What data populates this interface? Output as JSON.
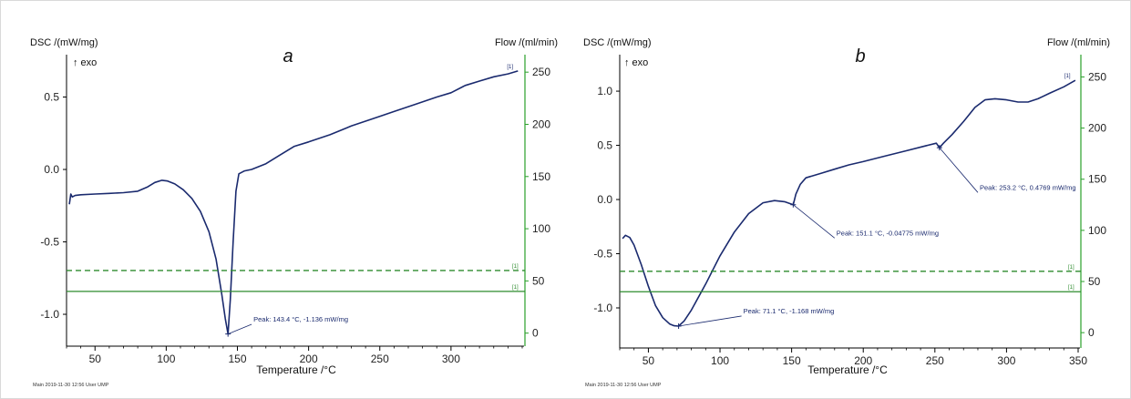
{
  "colors": {
    "curve": "#1a2a6e",
    "flow_axis": "#2aa02a",
    "flow_line": "#2e8b2e",
    "axis": "#000000",
    "annotation": "#1a2a6e",
    "marker": "#1a2a6e"
  },
  "chart_data": [
    {
      "panel_letter": "a",
      "type": "line",
      "ylabel": "DSC /(mW/mg)",
      "exo_label": "↑ exo",
      "y2label": "Flow /(ml/min)",
      "xlabel": "Temperature /°C",
      "footer": "Main   2019-11-30 12:56   User UMP",
      "xlim": [
        30,
        350
      ],
      "ylim": [
        -1.22,
        0.78
      ],
      "y2lim": [
        -12.5,
        265
      ],
      "xticks": [
        50,
        100,
        150,
        200,
        250,
        300
      ],
      "yticks": [
        0.5,
        0.0,
        -0.5,
        -1.0
      ],
      "y2ticks": [
        0,
        50,
        100,
        150,
        200,
        250
      ],
      "series": [
        {
          "role": "dsc",
          "x": [
            32,
            33,
            34,
            36,
            40,
            50,
            60,
            70,
            80,
            87,
            92,
            97,
            101,
            106,
            112,
            118,
            124,
            130,
            135,
            139,
            141.5,
            143.4,
            145,
            147,
            149,
            151,
            155,
            160,
            170,
            180,
            190,
            200,
            215,
            230,
            245,
            260,
            275,
            290,
            300,
            310,
            320,
            330,
            340,
            347
          ],
          "y": [
            -0.24,
            -0.17,
            -0.19,
            -0.18,
            -0.175,
            -0.17,
            -0.165,
            -0.16,
            -0.15,
            -0.12,
            -0.09,
            -0.075,
            -0.08,
            -0.1,
            -0.14,
            -0.2,
            -0.29,
            -0.43,
            -0.62,
            -0.86,
            -1.03,
            -1.136,
            -0.9,
            -0.5,
            -0.15,
            -0.03,
            -0.01,
            0.0,
            0.04,
            0.1,
            0.16,
            0.19,
            0.24,
            0.3,
            0.35,
            0.4,
            0.45,
            0.5,
            0.53,
            0.58,
            0.61,
            0.64,
            0.66,
            0.68
          ]
        },
        {
          "role": "flow-dashed",
          "x": [
            30,
            350
          ],
          "y2": [
            60,
            60
          ],
          "end_label": "[1]"
        },
        {
          "role": "flow-solid",
          "x": [
            30,
            350
          ],
          "y2": [
            40,
            40
          ],
          "end_label": "[1]"
        }
      ],
      "curve_end_label": "[1]",
      "annotations": [
        {
          "text": "Peak: 143.4 °C, -1.136 mW/mg",
          "point": [
            143.4,
            -1.136
          ],
          "label_anchor": [
            160,
            -1.05
          ]
        }
      ]
    },
    {
      "panel_letter": "b",
      "type": "line",
      "ylabel": "DSC /(mW/mg)",
      "exo_label": "↑ exo",
      "y2label": "Flow /(ml/min)",
      "xlabel": "Temperature /°C",
      "footer": "Main   2019-11-30 12:56   User UMP",
      "xlim": [
        30,
        350
      ],
      "ylim": [
        -1.37,
        1.32
      ],
      "y2lim": [
        -15,
        270
      ],
      "xticks": [
        50,
        100,
        150,
        200,
        250,
        300,
        350
      ],
      "yticks": [
        1.0,
        0.5,
        0.0,
        -0.5,
        -1.0
      ],
      "y2ticks": [
        0,
        50,
        100,
        150,
        200,
        250
      ],
      "series": [
        {
          "role": "dsc",
          "x": [
            32,
            34,
            37,
            40,
            45,
            50,
            55,
            60,
            65,
            68,
            71.1,
            75,
            80,
            90,
            100,
            110,
            120,
            130,
            138,
            145,
            151.1,
            153,
            156,
            160,
            170,
            180,
            190,
            200,
            215,
            230,
            245,
            251,
            253.2,
            256,
            262,
            270,
            278,
            285,
            292,
            300,
            308,
            315,
            322,
            330,
            340,
            348
          ],
          "y": [
            -0.36,
            -0.33,
            -0.35,
            -0.42,
            -0.6,
            -0.8,
            -0.98,
            -1.09,
            -1.15,
            -1.165,
            -1.168,
            -1.12,
            -1.02,
            -0.78,
            -0.52,
            -0.3,
            -0.13,
            -0.03,
            -0.01,
            -0.02,
            -0.048,
            0.05,
            0.14,
            0.2,
            0.24,
            0.28,
            0.32,
            0.35,
            0.4,
            0.45,
            0.5,
            0.52,
            0.478,
            0.52,
            0.6,
            0.72,
            0.85,
            0.92,
            0.93,
            0.92,
            0.9,
            0.9,
            0.93,
            0.98,
            1.04,
            1.1
          ]
        },
        {
          "role": "flow-dashed",
          "x": [
            30,
            350
          ],
          "y2": [
            60,
            60
          ],
          "end_label": "[1]"
        },
        {
          "role": "flow-solid",
          "x": [
            30,
            350
          ],
          "y2": [
            40,
            40
          ],
          "end_label": "[1]"
        }
      ],
      "curve_end_label": "[1]",
      "annotations": [
        {
          "text": "Peak: 71.1 °C, -1.168 mW/mg",
          "point": [
            71.1,
            -1.168
          ],
          "label_anchor": [
            115,
            -1.05
          ]
        },
        {
          "text": "Peak: 151.1 °C, -0.04775 mW/mg",
          "point": [
            151.1,
            -0.048
          ],
          "label_anchor": [
            180,
            -0.33
          ]
        },
        {
          "text": "Peak: 253.2 °C, 0.4769 mW/mg",
          "point": [
            253.2,
            0.478
          ],
          "label_anchor": [
            280,
            0.09
          ]
        }
      ]
    }
  ]
}
